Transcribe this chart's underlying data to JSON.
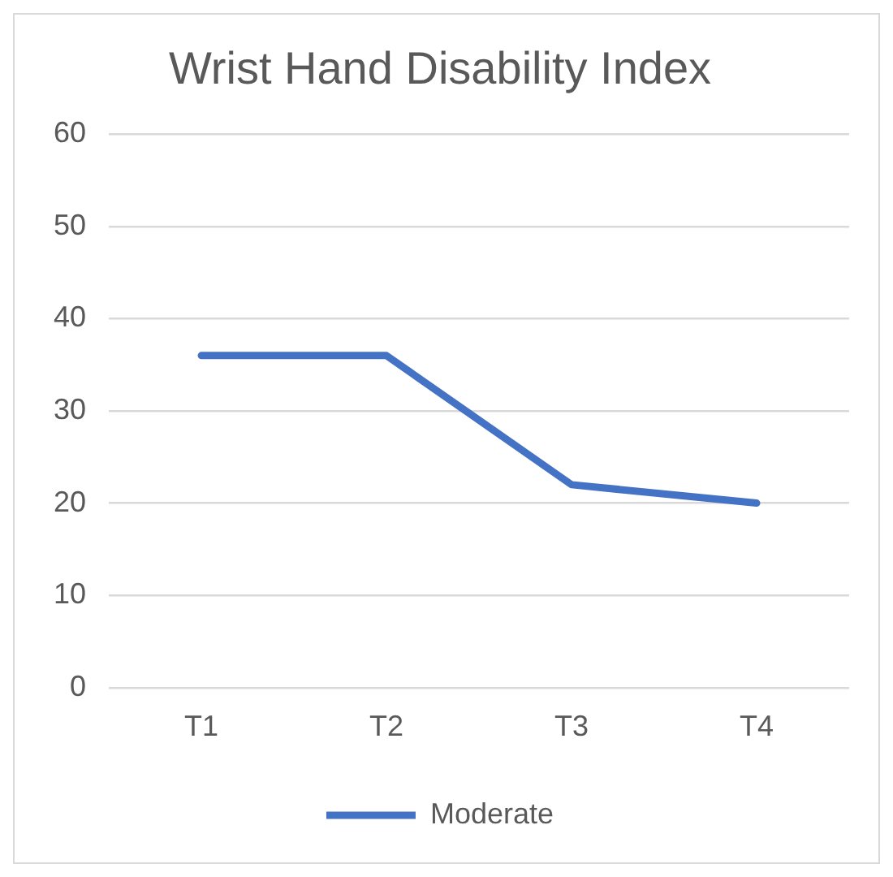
{
  "chart_data": {
    "type": "line",
    "title": "Wrist Hand Disability Index",
    "categories": [
      "T1",
      "T2",
      "T3",
      "T4"
    ],
    "series": [
      {
        "name": "Moderate",
        "color": "#4472c4",
        "values": [
          36,
          36,
          22,
          20
        ]
      }
    ],
    "ylim": [
      0,
      60
    ],
    "yticks": [
      0,
      10,
      20,
      30,
      40,
      50,
      60
    ],
    "grid": "y",
    "legend": "bottom",
    "marker": "none",
    "line_style": "solid"
  }
}
